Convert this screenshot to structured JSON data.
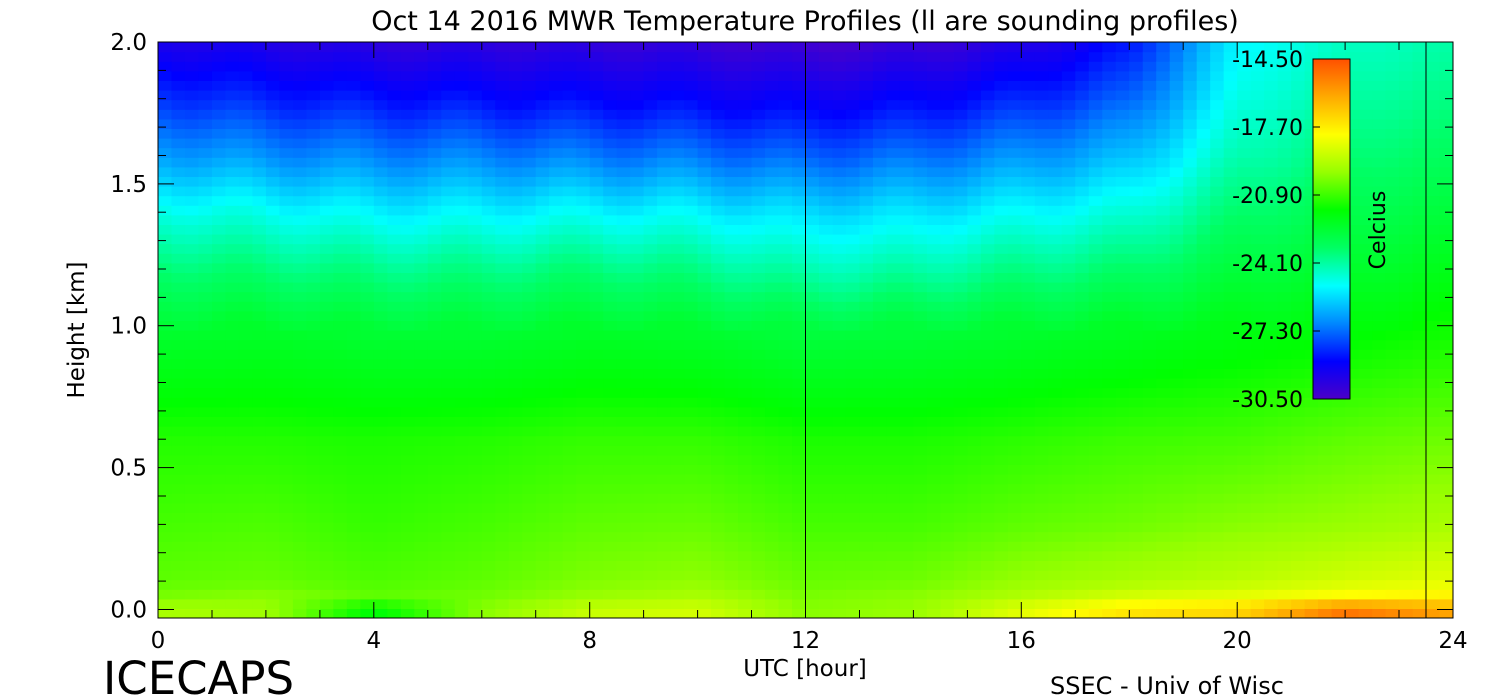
{
  "chart_data": {
    "type": "heatmap",
    "title": "Oct 14 2016 MWR Temperature Profiles (ll are sounding profiles)",
    "xlabel": "UTC [hour]",
    "ylabel": "Height [km]",
    "xlim": [
      0,
      24
    ],
    "ylim": [
      -0.03,
      2.0
    ],
    "x_ticks": [
      "0",
      "4",
      "8",
      "12",
      "16",
      "20",
      "24"
    ],
    "x_tick_values": [
      0,
      4,
      8,
      12,
      16,
      20,
      24
    ],
    "y_ticks": [
      "0.0",
      "0.5",
      "1.0",
      "1.5",
      "2.0"
    ],
    "y_tick_values": [
      0.0,
      0.5,
      1.0,
      1.5,
      2.0
    ],
    "colorbar": {
      "label": "Celcius",
      "ticks": [
        "-14.50",
        "-17.70",
        "-20.90",
        "-24.10",
        "-27.30",
        "-30.50"
      ],
      "range": [
        -30.5,
        -14.5
      ],
      "colors": [
        "#4b00c8",
        "#0000ff",
        "#0087ff",
        "#00ffff",
        "#00ff64",
        "#00ff00",
        "#96ff00",
        "#ffff00",
        "#ffaa00",
        "#ff5000"
      ]
    },
    "sounding_profiles_utc": [
      12.0,
      23.5
    ],
    "temperature_grid": {
      "heights_km": [
        0.0,
        0.05,
        0.1,
        0.3,
        0.6,
        1.0,
        1.2,
        1.4,
        1.6,
        1.8,
        2.0
      ],
      "times_utc": [
        0,
        2,
        4,
        6,
        8,
        10,
        12,
        14,
        16,
        18,
        20,
        22,
        24
      ],
      "values_celsius": [
        [
          -19.5,
          -19.7,
          -21.8,
          -20.0,
          -19.0,
          -18.8,
          -20.0,
          -19.8,
          -18.5,
          -17.5,
          -17.2,
          -15.2,
          -16.2
        ],
        [
          -20.2,
          -20.0,
          -20.5,
          -20.3,
          -19.8,
          -19.5,
          -20.2,
          -20.0,
          -19.4,
          -18.8,
          -18.5,
          -18.0,
          -17.8
        ],
        [
          -20.5,
          -20.4,
          -20.7,
          -20.5,
          -20.1,
          -19.9,
          -20.4,
          -20.3,
          -19.8,
          -19.5,
          -19.2,
          -18.8,
          -18.5
        ],
        [
          -20.8,
          -20.7,
          -21.0,
          -20.8,
          -20.5,
          -20.4,
          -20.8,
          -20.8,
          -20.5,
          -20.3,
          -20.0,
          -19.8,
          -19.5
        ],
        [
          -21.2,
          -21.2,
          -21.3,
          -21.2,
          -21.0,
          -21.0,
          -21.3,
          -21.3,
          -21.1,
          -20.9,
          -20.8,
          -20.5,
          -20.3
        ],
        [
          -22.5,
          -22.4,
          -22.6,
          -22.6,
          -22.4,
          -22.5,
          -22.8,
          -22.7,
          -22.5,
          -22.3,
          -22.0,
          -21.8,
          -21.5
        ],
        [
          -23.5,
          -23.6,
          -23.8,
          -23.8,
          -23.6,
          -23.8,
          -24.3,
          -24.2,
          -23.8,
          -23.5,
          -22.7,
          -22.4,
          -22.1
        ],
        [
          -24.8,
          -25.0,
          -25.3,
          -25.3,
          -25.2,
          -25.3,
          -25.7,
          -25.6,
          -25.2,
          -24.8,
          -23.5,
          -23.0,
          -22.7
        ],
        [
          -26.5,
          -26.8,
          -27.0,
          -27.0,
          -27.1,
          -27.2,
          -27.5,
          -27.3,
          -26.8,
          -26.2,
          -24.3,
          -23.6,
          -23.3
        ],
        [
          -28.0,
          -28.3,
          -28.5,
          -28.6,
          -28.7,
          -28.8,
          -29.0,
          -28.8,
          -28.3,
          -27.5,
          -24.9,
          -24.1,
          -23.8
        ],
        [
          -29.3,
          -29.5,
          -29.8,
          -29.8,
          -29.9,
          -30.0,
          -30.3,
          -30.1,
          -29.6,
          -28.6,
          -25.3,
          -24.5,
          -24.2
        ]
      ]
    }
  },
  "footer": {
    "left": "ICECAPS",
    "right": "SSEC - Univ of Wisc"
  }
}
